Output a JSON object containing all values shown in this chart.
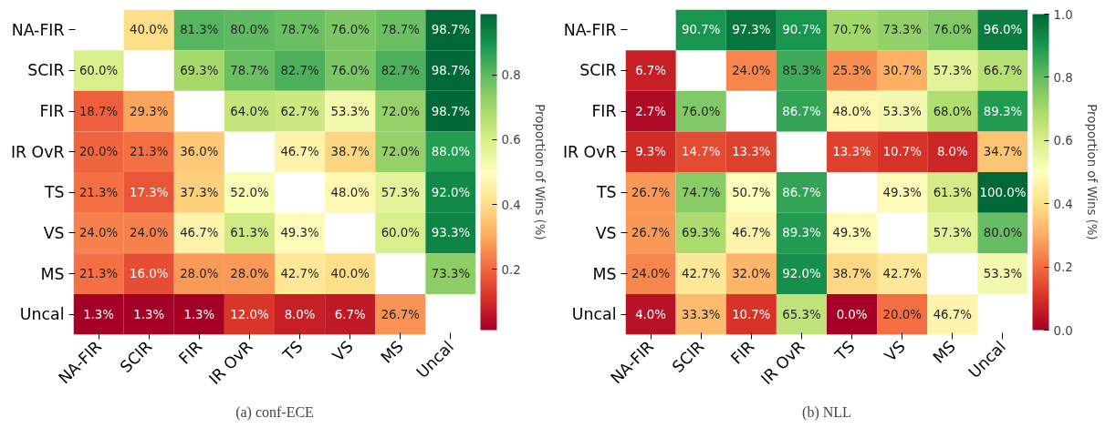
{
  "chart_data": [
    {
      "type": "heatmap",
      "title": "(a) conf-ECE",
      "clabel": "Proportion of Wins (%)",
      "categories": [
        "NA-FIR",
        "SCIR",
        "FIR",
        "IR OvR",
        "TS",
        "VS",
        "MS",
        "Uncal"
      ],
      "y_categories": [
        "NA-FIR",
        "SCIR",
        "FIR",
        "IR OvR",
        "TS",
        "VS",
        "MS",
        "Uncal"
      ],
      "cells": [
        [
          null,
          0.4,
          0.813,
          0.8,
          0.787,
          0.76,
          0.787,
          0.987
        ],
        [
          0.6,
          null,
          0.693,
          0.787,
          0.827,
          0.76,
          0.827,
          0.987
        ],
        [
          0.187,
          0.293,
          null,
          0.64,
          0.627,
          0.533,
          0.72,
          0.987
        ],
        [
          0.2,
          0.213,
          0.36,
          null,
          0.467,
          0.387,
          0.72,
          0.88
        ],
        [
          0.213,
          0.173,
          0.373,
          0.52,
          null,
          0.48,
          0.573,
          0.92
        ],
        [
          0.24,
          0.24,
          0.467,
          0.613,
          0.493,
          null,
          0.6,
          0.933
        ],
        [
          0.213,
          0.16,
          0.28,
          0.28,
          0.427,
          0.4,
          null,
          0.733
        ],
        [
          0.013,
          0.013,
          0.013,
          0.12,
          0.08,
          0.067,
          0.267,
          null
        ]
      ],
      "cell_labels": [
        [
          null,
          "40.0%",
          "81.3%",
          "80.0%",
          "78.7%",
          "76.0%",
          "78.7%",
          "98.7%"
        ],
        [
          "60.0%",
          null,
          "69.3%",
          "78.7%",
          "82.7%",
          "76.0%",
          "82.7%",
          "98.7%"
        ],
        [
          "18.7%",
          "29.3%",
          null,
          "64.0%",
          "62.7%",
          "53.3%",
          "72.0%",
          "98.7%"
        ],
        [
          "20.0%",
          "21.3%",
          "36.0%",
          null,
          "46.7%",
          "38.7%",
          "72.0%",
          "88.0%"
        ],
        [
          "21.3%",
          "17.3%",
          "37.3%",
          "52.0%",
          null,
          "48.0%",
          "57.3%",
          "92.0%"
        ],
        [
          "24.0%",
          "24.0%",
          "46.7%",
          "61.3%",
          "49.3%",
          null,
          "60.0%",
          "93.3%"
        ],
        [
          "21.3%",
          "16.0%",
          "28.0%",
          "28.0%",
          "42.7%",
          "40.0%",
          null,
          "73.3%"
        ],
        [
          "1.3%",
          "1.3%",
          "1.3%",
          "12.0%",
          "8.0%",
          "6.7%",
          "26.7%",
          null
        ]
      ],
      "clim": [
        0.013,
        0.987
      ],
      "cticks": [
        0.2,
        0.4,
        0.6,
        0.8
      ]
    },
    {
      "type": "heatmap",
      "title": "(b) NLL",
      "clabel": "Proportion of Wins (%)",
      "categories": [
        "NA-FIR",
        "SCIR",
        "FIR",
        "IR OvR",
        "TS",
        "VS",
        "MS",
        "Uncal"
      ],
      "y_categories": [
        "NA-FIR",
        "SCIR",
        "FIR",
        "IR OvR",
        "TS",
        "VS",
        "MS",
        "Uncal"
      ],
      "cells": [
        [
          null,
          0.907,
          0.973,
          0.907,
          0.707,
          0.733,
          0.76,
          0.96
        ],
        [
          0.067,
          null,
          0.24,
          0.853,
          0.253,
          0.307,
          0.573,
          0.667
        ],
        [
          0.027,
          0.76,
          null,
          0.867,
          0.48,
          0.533,
          0.68,
          0.893
        ],
        [
          0.093,
          0.147,
          0.133,
          null,
          0.133,
          0.107,
          0.08,
          0.347
        ],
        [
          0.267,
          0.747,
          0.507,
          0.867,
          null,
          0.493,
          0.613,
          1.0
        ],
        [
          0.267,
          0.693,
          0.467,
          0.893,
          0.493,
          null,
          0.573,
          0.8
        ],
        [
          0.24,
          0.427,
          0.32,
          0.92,
          0.387,
          0.427,
          null,
          0.533
        ],
        [
          0.04,
          0.333,
          0.107,
          0.653,
          0.0,
          0.2,
          0.467,
          null
        ]
      ],
      "cell_labels": [
        [
          null,
          "90.7%",
          "97.3%",
          "90.7%",
          "70.7%",
          "73.3%",
          "76.0%",
          "96.0%"
        ],
        [
          "6.7%",
          null,
          "24.0%",
          "85.3%",
          "25.3%",
          "30.7%",
          "57.3%",
          "66.7%"
        ],
        [
          "2.7%",
          "76.0%",
          null,
          "86.7%",
          "48.0%",
          "53.3%",
          "68.0%",
          "89.3%"
        ],
        [
          "9.3%",
          "14.7%",
          "13.3%",
          null,
          "13.3%",
          "10.7%",
          "8.0%",
          "34.7%"
        ],
        [
          "26.7%",
          "74.7%",
          "50.7%",
          "86.7%",
          null,
          "49.3%",
          "61.3%",
          "100.0%"
        ],
        [
          "26.7%",
          "69.3%",
          "46.7%",
          "89.3%",
          "49.3%",
          null,
          "57.3%",
          "80.0%"
        ],
        [
          "24.0%",
          "42.7%",
          "32.0%",
          "92.0%",
          "38.7%",
          "42.7%",
          null,
          "53.3%"
        ],
        [
          "4.0%",
          "33.3%",
          "10.7%",
          "65.3%",
          "0.0%",
          "20.0%",
          "46.7%",
          null
        ]
      ],
      "clim": [
        0,
        1
      ],
      "cticks": [
        {
          "value": 0,
          "label": "0.0"
        },
        {
          "value": 0.2,
          "label": "0.2"
        },
        {
          "value": 0.4,
          "label": "0.4"
        },
        {
          "value": 0.6,
          "label": "0.6"
        },
        {
          "value": 0.8,
          "label": "0.8"
        },
        {
          "value": 1,
          "label": "1.0"
        }
      ]
    }
  ]
}
